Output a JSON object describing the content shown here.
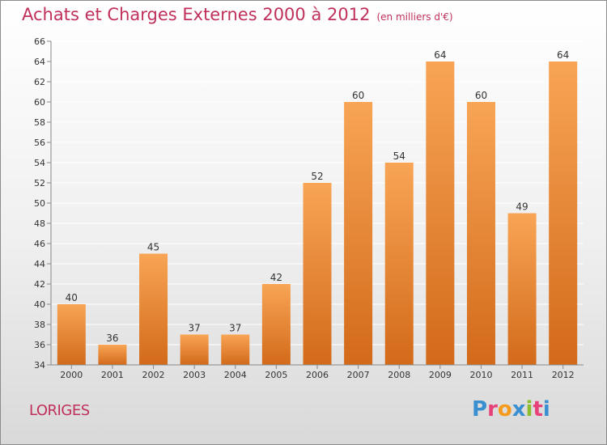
{
  "header": {
    "title": "Achats et Charges Externes 2000 à 2012",
    "unit": "(en milliers d'€)"
  },
  "footer": {
    "commune": "LORIGES",
    "logo_text": "Proxiti"
  },
  "colors": {
    "title": "#c0305a",
    "bar_top": "#f8a555",
    "bar_bottom": "#d26a1a",
    "logo_letters": [
      "#3a8fd0",
      "#e8417a",
      "#f59a1a",
      "#3a8fd0",
      "#8cbd2e",
      "#e8417a",
      "#3a8fd0"
    ]
  },
  "chart_data": {
    "type": "bar",
    "title": "Achats et Charges Externes 2000 à 2012",
    "categories": [
      "2000",
      "2001",
      "2002",
      "2003",
      "2004",
      "2005",
      "2006",
      "2007",
      "2008",
      "2009",
      "2010",
      "2011",
      "2012"
    ],
    "values": [
      40,
      36,
      45,
      37,
      37,
      42,
      52,
      60,
      54,
      64,
      60,
      49,
      64
    ],
    "ylim": [
      34,
      66
    ],
    "ytick_step": 2,
    "grid": true,
    "legend": "none"
  }
}
